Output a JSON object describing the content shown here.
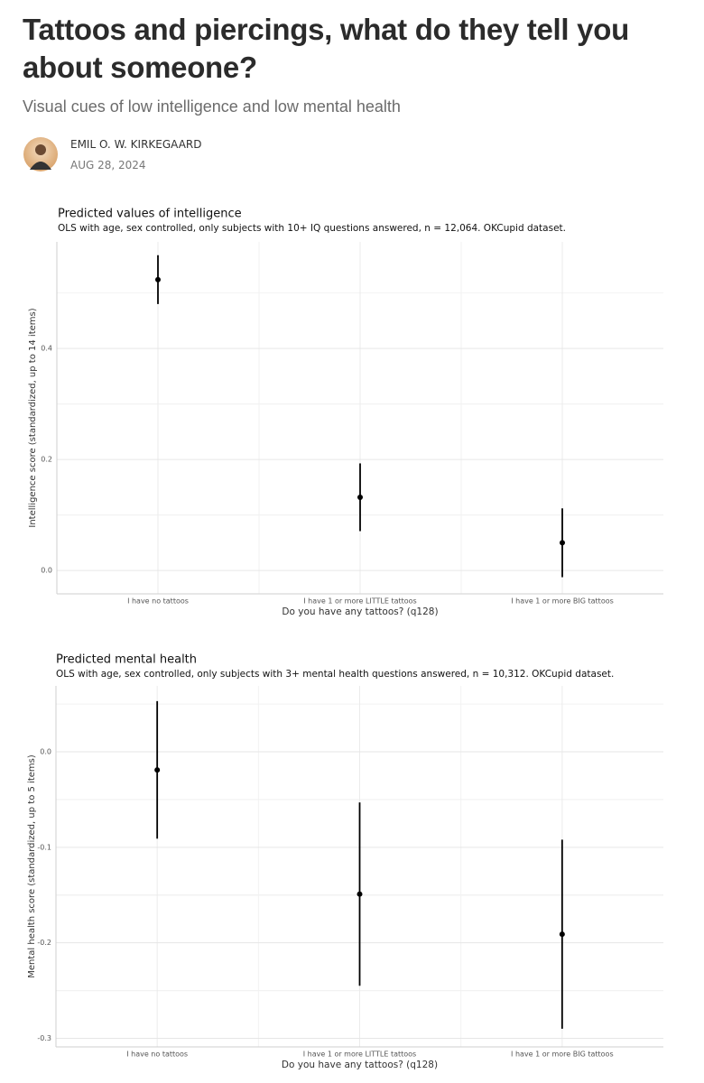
{
  "article": {
    "title": "Tattoos and piercings, what do they tell you about someone?",
    "subtitle": "Visual cues of low intelligence and low mental health",
    "author": "EMIL O. W. KIRKEGAARD",
    "date": "AUG 28, 2024"
  },
  "chart_data": [
    {
      "type": "errorbar",
      "title": "Predicted values of intelligence",
      "subtitle": "OLS with age, sex controlled, only subjects with 10+ IQ questions answered, n = 12,064. OKCupid dataset.",
      "x_label": "Do you have any tattoos? (q128)",
      "y_label": "Intelligence score (standardized, up to 14 items)",
      "categories": [
        "I have no tattoos",
        "I have 1 or more LITTLE tattoos",
        "I have 1 or more BIG tattoos"
      ],
      "values": [
        0.524,
        0.132,
        0.05
      ],
      "errors": [
        0.044,
        0.061,
        0.062
      ],
      "color": "#000000",
      "ylim": [
        -0.042,
        0.592
      ],
      "yticks": [
        {
          "value": 0,
          "label": "0.0"
        },
        0.2,
        0.4
      ],
      "grid": true,
      "minor_grid": true
    },
    {
      "type": "errorbar",
      "title": "Predicted mental health",
      "subtitle": "OLS with age, sex controlled, only subjects with 3+ mental health questions answered, n = 10,312. OKCupid dataset.",
      "x_label": "Do you have any tattoos? (q128)",
      "y_label": "Mental health score (standardized, up to 5 items)",
      "categories": [
        "I have no tattoos",
        "I have 1 or more LITTLE tattoos",
        "I have 1 or more BIG tattoos"
      ],
      "values": [
        -0.019,
        -0.149,
        -0.191
      ],
      "errors": [
        0.072,
        0.096,
        0.099
      ],
      "color": "#000000",
      "ylim": [
        -0.309,
        0.069
      ],
      "yticks": [
        {
          "value": 0,
          "label": "0.0"
        },
        -0.1,
        -0.2,
        -0.3
      ],
      "grid": true,
      "minor_grid": true
    }
  ]
}
